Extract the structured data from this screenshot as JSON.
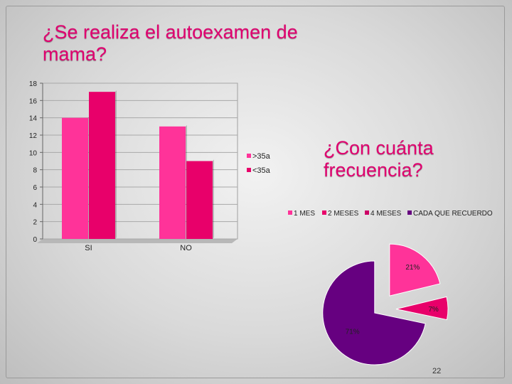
{
  "slide": {
    "title1": "¿Se realiza el autoexamen de mama?",
    "title2": "¿Con cuánta frecuencia?",
    "page_number": "22"
  },
  "chart_data": [
    {
      "type": "bar",
      "categories": [
        "SI",
        "NO"
      ],
      "series": [
        {
          "name": ">35a",
          "values": [
            14,
            13
          ],
          "color": "#ff3399"
        },
        {
          "name": "<35a",
          "values": [
            17,
            9
          ],
          "color": "#e8006a"
        }
      ],
      "ylim": [
        0,
        18
      ],
      "yticks": [
        0,
        2,
        4,
        6,
        8,
        10,
        12,
        14,
        16,
        18
      ],
      "grid": true,
      "legend": "right"
    },
    {
      "type": "pie",
      "categories": [
        "1 MES",
        "2 MESES",
        "4 MESES",
        "CADA QUE RECUERDO"
      ],
      "values": [
        21,
        7,
        0,
        71
      ],
      "labels": [
        "21%",
        "7%",
        "",
        "71%"
      ],
      "colors": [
        "#ff3399",
        "#e8006a",
        "#cc0066",
        "#660080"
      ],
      "exploded": true,
      "legend": "top"
    }
  ]
}
